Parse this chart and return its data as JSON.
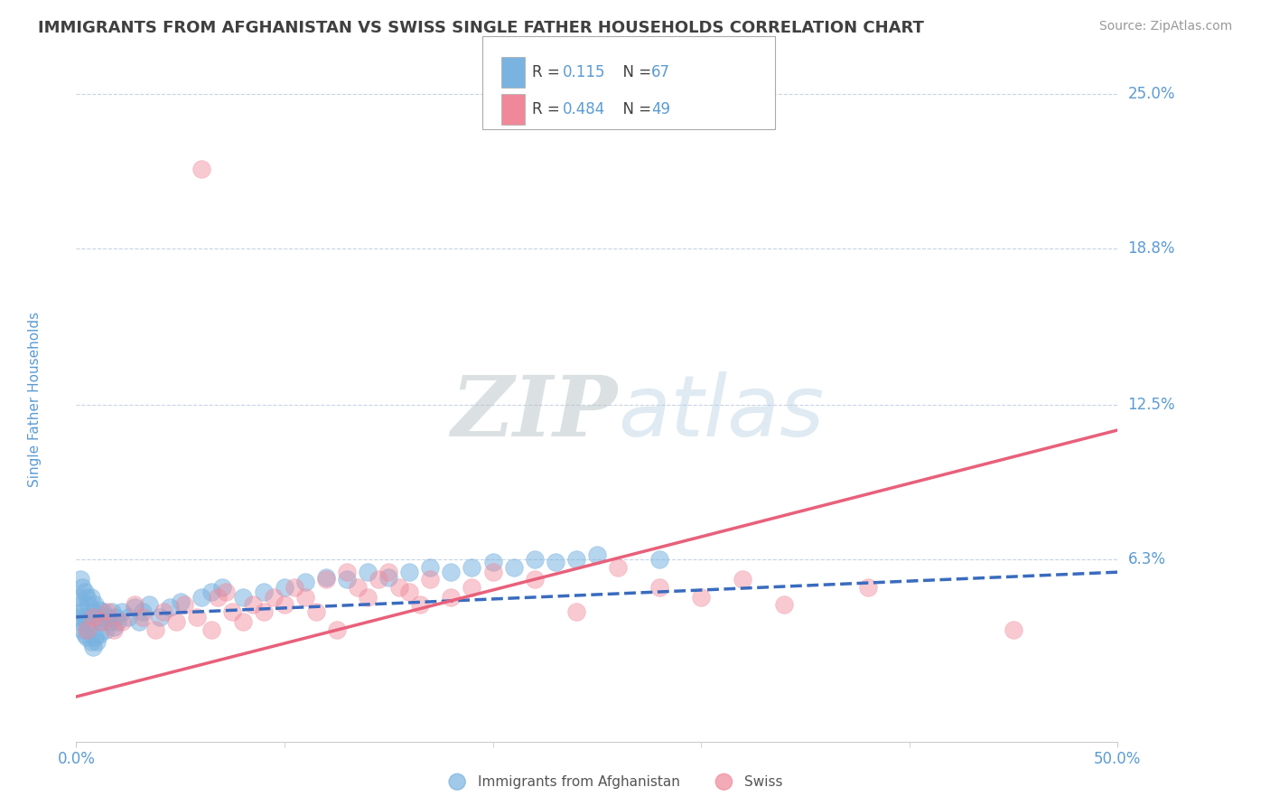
{
  "title": "IMMIGRANTS FROM AFGHANISTAN VS SWISS SINGLE FATHER HOUSEHOLDS CORRELATION CHART",
  "source": "Source: ZipAtlas.com",
  "ylabel": "Single Father Households",
  "xlim": [
    0.0,
    0.5
  ],
  "ylim": [
    -0.01,
    0.265
  ],
  "ytick_labels": [
    "6.3%",
    "12.5%",
    "18.8%",
    "25.0%"
  ],
  "ytick_values": [
    0.063,
    0.125,
    0.188,
    0.25
  ],
  "blue_color": "#7ab3e0",
  "pink_color": "#f0889a",
  "blue_line_color": "#3a6bbf",
  "pink_line_color": "#e8607a",
  "title_color": "#404040",
  "axis_label_color": "#5b9bd5",
  "tick_label_color": "#5b9bd5",
  "source_color": "#999999",
  "watermark_zip": "ZIP",
  "watermark_atlas": "atlas",
  "grid_color": "#c8d4e4",
  "background_color": "#ffffff",
  "blue_scatter_x": [
    0.001,
    0.001,
    0.002,
    0.002,
    0.002,
    0.003,
    0.003,
    0.003,
    0.004,
    0.004,
    0.004,
    0.005,
    0.005,
    0.005,
    0.006,
    0.006,
    0.007,
    0.007,
    0.007,
    0.008,
    0.008,
    0.009,
    0.009,
    0.01,
    0.01,
    0.011,
    0.011,
    0.012,
    0.013,
    0.014,
    0.015,
    0.016,
    0.017,
    0.018,
    0.019,
    0.02,
    0.022,
    0.025,
    0.028,
    0.03,
    0.032,
    0.035,
    0.04,
    0.045,
    0.05,
    0.06,
    0.065,
    0.07,
    0.08,
    0.09,
    0.1,
    0.11,
    0.12,
    0.13,
    0.14,
    0.15,
    0.16,
    0.17,
    0.18,
    0.19,
    0.2,
    0.21,
    0.22,
    0.23,
    0.24,
    0.25,
    0.28
  ],
  "blue_scatter_y": [
    0.04,
    0.048,
    0.038,
    0.045,
    0.055,
    0.035,
    0.042,
    0.052,
    0.033,
    0.04,
    0.05,
    0.032,
    0.038,
    0.048,
    0.035,
    0.045,
    0.03,
    0.038,
    0.048,
    0.028,
    0.042,
    0.032,
    0.045,
    0.03,
    0.04,
    0.033,
    0.043,
    0.038,
    0.042,
    0.035,
    0.04,
    0.038,
    0.042,
    0.036,
    0.04,
    0.038,
    0.042,
    0.04,
    0.044,
    0.038,
    0.042,
    0.045,
    0.04,
    0.044,
    0.046,
    0.048,
    0.05,
    0.052,
    0.048,
    0.05,
    0.052,
    0.054,
    0.056,
    0.055,
    0.058,
    0.056,
    0.058,
    0.06,
    0.058,
    0.06,
    0.062,
    0.06,
    0.063,
    0.062,
    0.063,
    0.065,
    0.063
  ],
  "pink_scatter_x": [
    0.005,
    0.008,
    0.012,
    0.015,
    0.018,
    0.022,
    0.028,
    0.032,
    0.038,
    0.042,
    0.048,
    0.052,
    0.058,
    0.06,
    0.065,
    0.068,
    0.072,
    0.075,
    0.08,
    0.085,
    0.09,
    0.095,
    0.1,
    0.105,
    0.11,
    0.115,
    0.12,
    0.125,
    0.13,
    0.135,
    0.14,
    0.145,
    0.15,
    0.155,
    0.16,
    0.165,
    0.17,
    0.18,
    0.19,
    0.2,
    0.22,
    0.24,
    0.26,
    0.28,
    0.3,
    0.32,
    0.34,
    0.38,
    0.45
  ],
  "pink_scatter_y": [
    0.035,
    0.04,
    0.038,
    0.042,
    0.035,
    0.038,
    0.045,
    0.04,
    0.035,
    0.042,
    0.038,
    0.045,
    0.04,
    0.22,
    0.035,
    0.048,
    0.05,
    0.042,
    0.038,
    0.045,
    0.042,
    0.048,
    0.045,
    0.052,
    0.048,
    0.042,
    0.055,
    0.035,
    0.058,
    0.052,
    0.048,
    0.055,
    0.058,
    0.052,
    0.05,
    0.045,
    0.055,
    0.048,
    0.052,
    0.058,
    0.055,
    0.042,
    0.06,
    0.052,
    0.048,
    0.055,
    0.045,
    0.052,
    0.035
  ],
  "blue_trend_x": [
    0.0,
    0.5
  ],
  "blue_trend_y": [
    0.04,
    0.058
  ],
  "pink_trend_x": [
    0.0,
    0.5
  ],
  "pink_trend_y": [
    0.008,
    0.115
  ]
}
